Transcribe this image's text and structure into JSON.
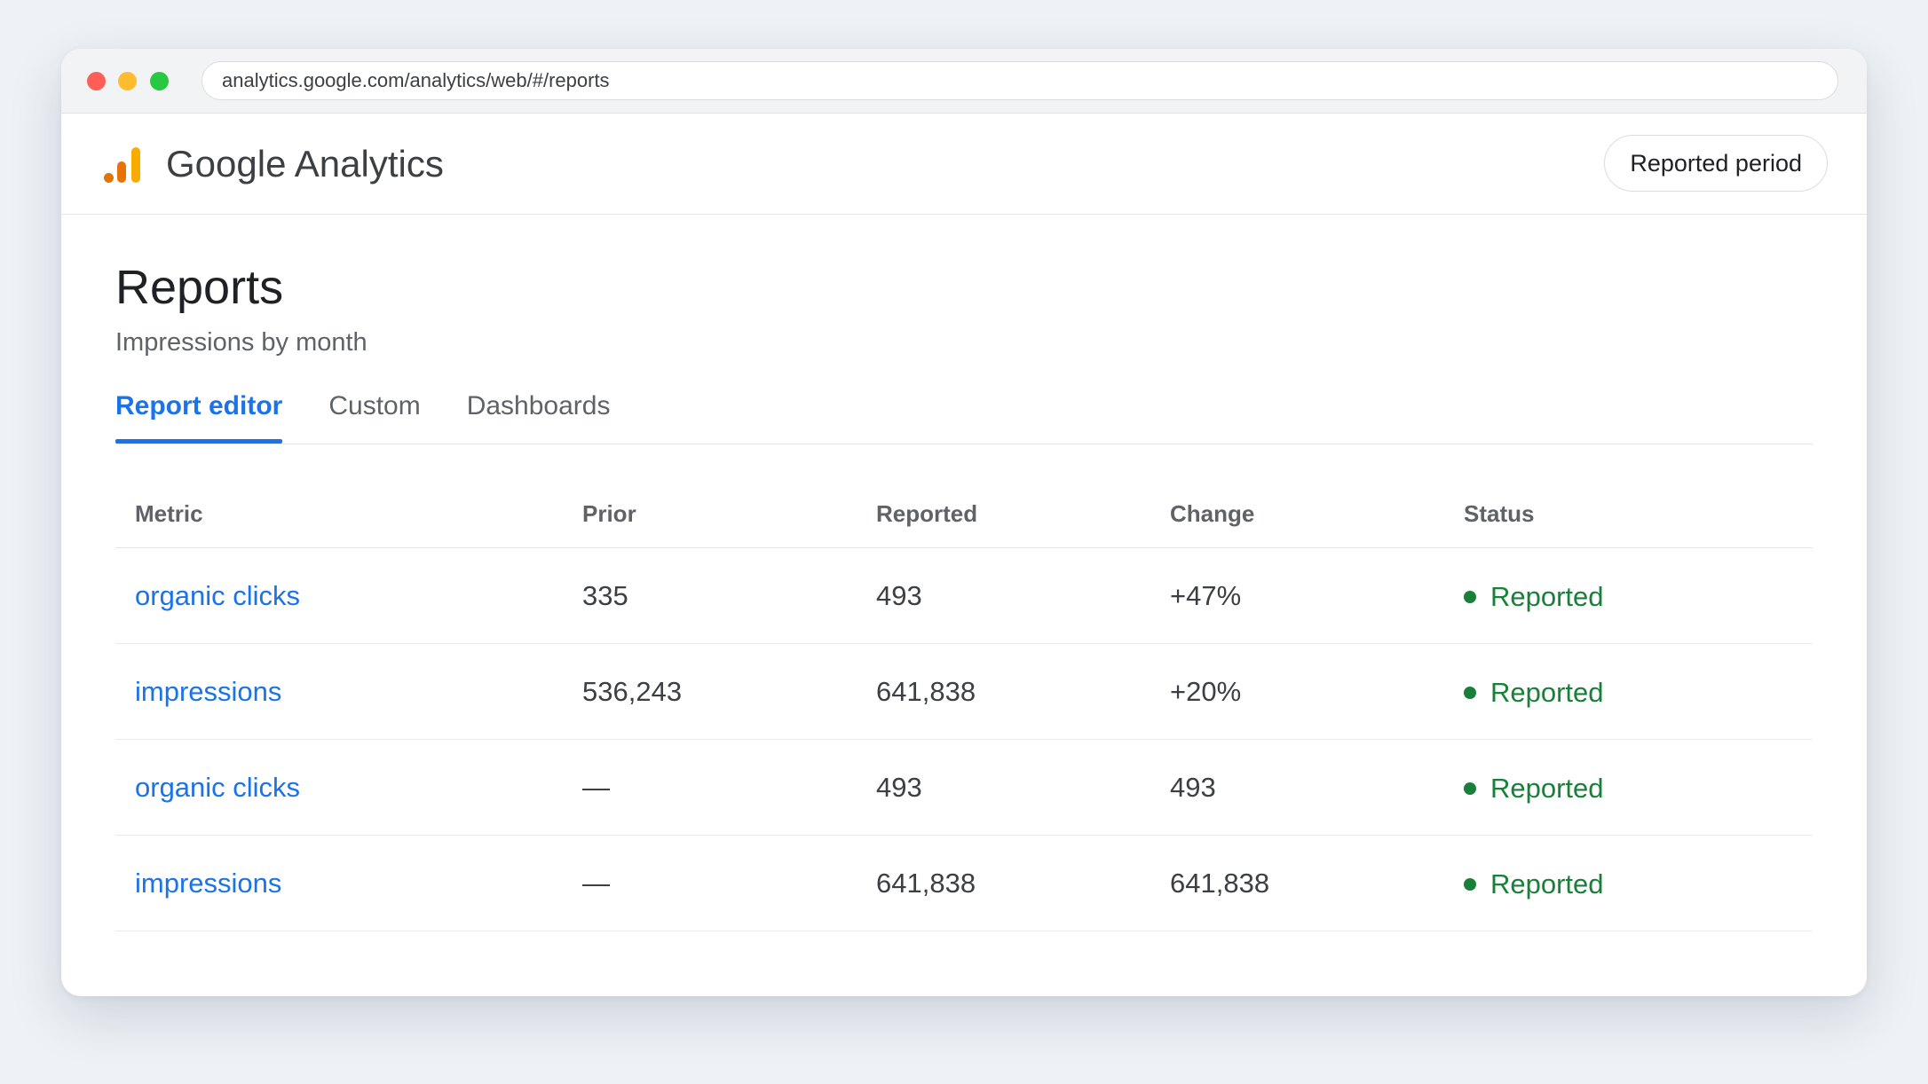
{
  "browser": {
    "url": "analytics.google.com/analytics/web/#/reports",
    "traffic_lights": {
      "close_color": "#ff5f57",
      "minimize_color": "#febc2e",
      "maximize_color": "#28c840"
    }
  },
  "header": {
    "app_title": "Google Analytics",
    "logo_icon": "analytics-bars-icon",
    "logo_colors": {
      "dot": "#e37400",
      "bar_small": "#e8710a",
      "bar_large": "#f9ab00"
    },
    "period_button_label": "Reported period"
  },
  "page": {
    "title": "Reports",
    "subtitle": "Impressions by month"
  },
  "tabs": [
    {
      "label": "Report editor",
      "active": true
    },
    {
      "label": "Custom",
      "active": false
    },
    {
      "label": "Dashboards",
      "active": false
    }
  ],
  "table": {
    "columns": [
      "Metric",
      "Prior",
      "Reported",
      "Change",
      "Status"
    ],
    "rows": [
      {
        "metric": "organic clicks",
        "prior": "335",
        "reported": "493",
        "change": "+47%",
        "status": "Reported"
      },
      {
        "metric": "impressions",
        "prior": "536,243",
        "reported": "641,838",
        "change": "+20%",
        "status": "Reported"
      },
      {
        "metric": "organic clicks",
        "prior": "—",
        "reported": "493",
        "change": "493",
        "status": "Reported"
      },
      {
        "metric": "impressions",
        "prior": "—",
        "reported": "641,838",
        "change": "641,838",
        "status": "Reported"
      }
    ],
    "status_color": "#188038",
    "link_color": "#1a73e8"
  }
}
